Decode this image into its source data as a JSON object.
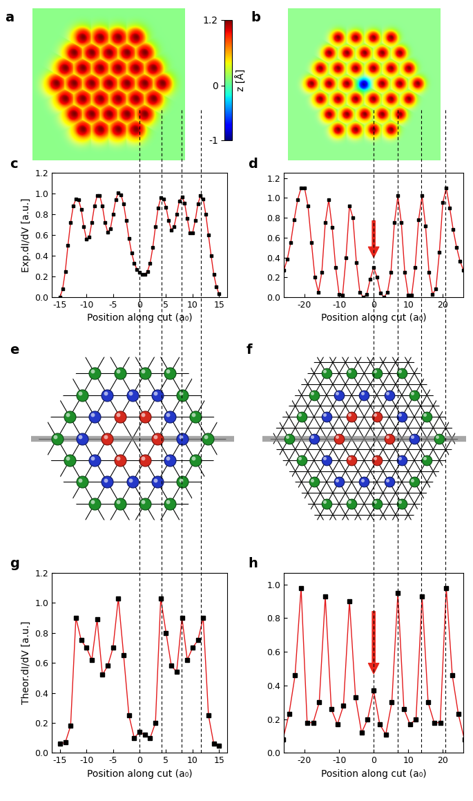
{
  "chart_data": [
    {
      "type": "image",
      "title": "a",
      "colorbar": {
        "range": [
          -1,
          1.2
        ],
        "ticks": [
          -1,
          0,
          1.2
        ],
        "label": "z [Å]"
      }
    },
    {
      "type": "image",
      "title": "b"
    },
    {
      "type": "line",
      "title": "c",
      "x_label": "Position along cut (a₀)",
      "y_label": "Exp.dI/dV [a.u.]",
      "color": "#e31a1c",
      "marker": "square",
      "x": [
        -15,
        -14.5,
        -14,
        -13.5,
        -13,
        -12.5,
        -12,
        -11.5,
        -11,
        -10.5,
        -10,
        -9.5,
        -9,
        -8.5,
        -8,
        -7.5,
        -7,
        -6.5,
        -6,
        -5.5,
        -5,
        -4.5,
        -4,
        -3.5,
        -3,
        -2.5,
        -2,
        -1.5,
        -1,
        -0.5,
        0,
        0.5,
        1,
        1.5,
        2,
        2.5,
        3,
        3.5,
        4,
        4.5,
        5,
        5.5,
        6,
        6.5,
        7,
        7.5,
        8,
        8.5,
        9,
        9.5,
        10,
        10.5,
        11,
        11.5,
        12,
        12.5,
        13,
        13.5,
        14,
        14.5,
        15
      ],
      "values": [
        0.0,
        0.08,
        0.25,
        0.5,
        0.72,
        0.88,
        0.95,
        0.94,
        0.85,
        0.68,
        0.56,
        0.58,
        0.72,
        0.88,
        0.98,
        0.98,
        0.88,
        0.72,
        0.63,
        0.66,
        0.8,
        0.94,
        1.01,
        0.99,
        0.9,
        0.74,
        0.57,
        0.43,
        0.33,
        0.27,
        0.24,
        0.22,
        0.22,
        0.25,
        0.33,
        0.48,
        0.68,
        0.86,
        0.96,
        0.95,
        0.87,
        0.74,
        0.65,
        0.68,
        0.8,
        0.93,
        0.97,
        0.91,
        0.76,
        0.62,
        0.62,
        0.74,
        0.9,
        0.98,
        0.95,
        0.8,
        0.6,
        0.4,
        0.22,
        0.1,
        0.03
      ],
      "xlim": [
        -16.5,
        16.5
      ],
      "xticks": [
        -15,
        -10,
        -5,
        0,
        5,
        10,
        15
      ],
      "ylim": [
        0,
        1.2
      ],
      "yticks": [
        {
          "value": 0.0,
          "label": "0.0"
        },
        {
          "value": 0.2,
          "label": "0.2"
        },
        {
          "value": 0.4,
          "label": "0.4"
        },
        {
          "value": 0.6,
          "label": "0.6"
        },
        {
          "value": 0.8,
          "label": "0.8"
        },
        {
          "value": 1.0,
          "label": "1.0"
        },
        {
          "value": 1.2,
          "label": "1.2"
        }
      ],
      "guides": [
        0,
        4.1,
        7.9,
        11.6
      ]
    },
    {
      "type": "line",
      "title": "d",
      "x_label": "Position along cut (a₀)",
      "color": "#e31a1c",
      "marker": "square",
      "arrow_at": 0,
      "x": [
        -26,
        -25,
        -24,
        -23,
        -22,
        -21,
        -20,
        -19,
        -18,
        -17,
        -16,
        -15,
        -14,
        -13,
        -12,
        -11,
        -10,
        -9,
        -8,
        -7,
        -6,
        -5,
        -4,
        -3,
        -2,
        -1,
        0,
        1,
        2,
        3,
        4,
        5,
        6,
        7,
        8,
        9,
        10,
        11,
        12,
        13,
        14,
        15,
        16,
        17,
        18,
        19,
        20,
        21,
        22,
        23,
        24,
        25,
        26
      ],
      "values": [
        0.27,
        0.38,
        0.55,
        0.78,
        0.98,
        1.1,
        1.1,
        0.92,
        0.55,
        0.2,
        0.05,
        0.25,
        0.75,
        0.98,
        0.7,
        0.3,
        0.03,
        0.02,
        0.4,
        0.92,
        0.8,
        0.35,
        0.05,
        0.0,
        0.03,
        0.18,
        0.3,
        0.2,
        0.04,
        0.0,
        0.05,
        0.25,
        0.75,
        1.02,
        0.75,
        0.25,
        0.02,
        0.02,
        0.3,
        0.78,
        1.02,
        0.72,
        0.25,
        0.03,
        0.08,
        0.45,
        0.95,
        1.1,
        0.9,
        0.68,
        0.5,
        0.36,
        0.27
      ],
      "xlim": [
        -26,
        26
      ],
      "xticks": [
        -20,
        -10,
        0,
        10,
        20
      ],
      "ylim": [
        0,
        1.25
      ],
      "yticks": [
        {
          "value": 0.0,
          "label": "0.0"
        },
        {
          "value": 0.2,
          "label": "0.2"
        },
        {
          "value": 0.4,
          "label": "0.4"
        },
        {
          "value": 0.6,
          "label": "0.6"
        },
        {
          "value": 0.8,
          "label": "0.8"
        },
        {
          "value": 1.0,
          "label": "1.0"
        },
        {
          "value": 1.2,
          "label": "1.2"
        }
      ],
      "guides": [
        0,
        6.9,
        13.8,
        20.7
      ]
    },
    {
      "type": "diagram",
      "title": "e"
    },
    {
      "type": "diagram",
      "title": "f"
    },
    {
      "type": "line",
      "title": "g",
      "x_label": "Position along cut (a₀)",
      "y_label": "Theor.dI/dV [a.u.]",
      "color": "#e31a1c",
      "marker": "square",
      "x": [
        -15,
        -14,
        -13,
        -12,
        -11,
        -10,
        -9,
        -8,
        -7,
        -6,
        -5,
        -4,
        -3,
        -2,
        -1,
        0,
        1,
        2,
        3,
        4,
        5,
        6,
        7,
        8,
        9,
        10,
        11,
        12,
        13,
        14,
        15
      ],
      "values": [
        0.06,
        0.07,
        0.18,
        0.9,
        0.75,
        0.7,
        0.62,
        0.89,
        0.52,
        0.58,
        0.7,
        1.03,
        0.65,
        0.25,
        0.1,
        0.14,
        0.12,
        0.1,
        0.2,
        1.03,
        0.8,
        0.58,
        0.54,
        0.9,
        0.62,
        0.7,
        0.75,
        0.9,
        0.25,
        0.06,
        0.05
      ],
      "xlim": [
        -16.5,
        16.5
      ],
      "xticks": [
        -15,
        -10,
        -5,
        0,
        5,
        10,
        15
      ],
      "ylim": [
        0,
        1.2
      ],
      "yticks": [
        {
          "value": 0.0,
          "label": "0.0"
        },
        {
          "value": 0.2,
          "label": "0.2"
        },
        {
          "value": 0.4,
          "label": "0.4"
        },
        {
          "value": 0.6,
          "label": "0.6"
        },
        {
          "value": 0.8,
          "label": "0.8"
        },
        {
          "value": 1.0,
          "label": "1.0"
        },
        {
          "value": 1.2,
          "label": "1.2"
        }
      ]
    },
    {
      "type": "line",
      "title": "h",
      "x_label": "Position along cut (a₀)",
      "color": "#e31a1c",
      "marker": "square",
      "arrow_at": 0,
      "x": [
        -26.25,
        -24.5,
        -22.75,
        -21,
        -19.25,
        -17.5,
        -15.75,
        -14,
        -12.25,
        -10.5,
        -8.75,
        -7,
        -5.25,
        -3.5,
        -1.75,
        0,
        1.75,
        3.5,
        5.25,
        7,
        8.75,
        10.5,
        12.25,
        14,
        15.75,
        17.5,
        19.25,
        21,
        22.75,
        24.5,
        26.25
      ],
      "values": [
        0.08,
        0.23,
        0.46,
        0.98,
        0.18,
        0.18,
        0.3,
        0.93,
        0.26,
        0.17,
        0.28,
        0.9,
        0.33,
        0.12,
        0.2,
        0.37,
        0.17,
        0.11,
        0.3,
        0.95,
        0.26,
        0.17,
        0.2,
        0.93,
        0.3,
        0.18,
        0.18,
        0.98,
        0.46,
        0.23,
        0.08
      ],
      "xlim": [
        -26,
        26
      ],
      "xticks": [
        -20,
        -10,
        0,
        10,
        20
      ],
      "ylim": [
        0,
        1.07
      ],
      "yticks": [
        {
          "value": 0.0,
          "label": "0.0"
        },
        {
          "value": 0.2,
          "label": "0.2"
        },
        {
          "value": 0.4,
          "label": "0.4"
        },
        {
          "value": 0.6,
          "label": "0.6"
        },
        {
          "value": 0.8,
          "label": "0.8"
        },
        {
          "value": 1.0,
          "label": "1.0"
        }
      ]
    }
  ]
}
